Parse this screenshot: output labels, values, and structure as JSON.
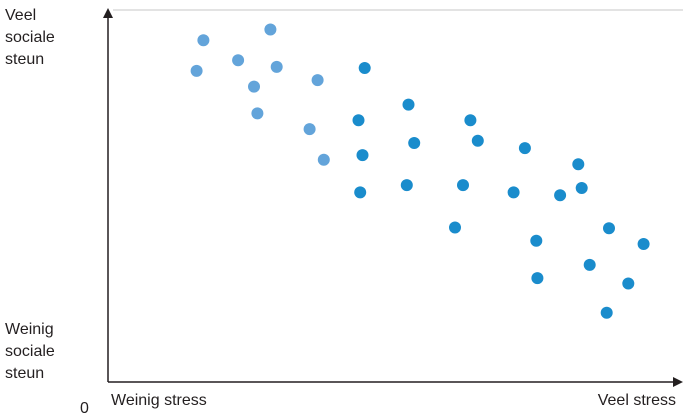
{
  "chart_data": {
    "type": "scatter",
    "xlabel": "",
    "ylabel": "",
    "origin_label": "0",
    "x_axis": {
      "low_label": "Weinig stress",
      "high_label": "Veel stress",
      "range": [
        0,
        100
      ]
    },
    "y_axis": {
      "high_label": [
        "Veel",
        "sociale",
        "steun"
      ],
      "low_label": [
        "Weinig",
        "sociale",
        "steun"
      ],
      "range": [
        0,
        100
      ]
    },
    "grid": false,
    "colors": {
      "axis": "#231f20",
      "light_point": "#63a4da",
      "dark_point": "#1a8ccc"
    },
    "series": [
      {
        "color": "light",
        "points": [
          {
            "x": 16.8,
            "y": 93.4
          },
          {
            "x": 28.6,
            "y": 96.3
          },
          {
            "x": 15.6,
            "y": 85.0
          },
          {
            "x": 22.9,
            "y": 87.9
          },
          {
            "x": 29.7,
            "y": 86.1
          },
          {
            "x": 25.7,
            "y": 80.7
          },
          {
            "x": 26.3,
            "y": 73.4
          },
          {
            "x": 36.9,
            "y": 82.5
          },
          {
            "x": 35.5,
            "y": 69.1
          },
          {
            "x": 38.0,
            "y": 60.7
          }
        ]
      },
      {
        "color": "dark",
        "points": [
          {
            "x": 45.2,
            "y": 85.8
          },
          {
            "x": 44.1,
            "y": 71.5
          },
          {
            "x": 52.9,
            "y": 75.8
          },
          {
            "x": 44.8,
            "y": 62.0
          },
          {
            "x": 53.9,
            "y": 65.3
          },
          {
            "x": 63.8,
            "y": 71.5
          },
          {
            "x": 65.1,
            "y": 65.9
          },
          {
            "x": 73.4,
            "y": 63.9
          },
          {
            "x": 44.4,
            "y": 51.8
          },
          {
            "x": 52.6,
            "y": 53.8
          },
          {
            "x": 62.5,
            "y": 53.8
          },
          {
            "x": 71.4,
            "y": 51.8
          },
          {
            "x": 79.6,
            "y": 51.0
          },
          {
            "x": 82.8,
            "y": 59.5
          },
          {
            "x": 83.4,
            "y": 53.0
          },
          {
            "x": 61.1,
            "y": 42.2
          },
          {
            "x": 75.4,
            "y": 38.6
          },
          {
            "x": 88.2,
            "y": 42.0
          },
          {
            "x": 94.3,
            "y": 37.7
          },
          {
            "x": 75.6,
            "y": 28.4
          },
          {
            "x": 84.8,
            "y": 32.0
          },
          {
            "x": 91.6,
            "y": 26.9
          },
          {
            "x": 87.8,
            "y": 18.9
          }
        ]
      }
    ]
  }
}
